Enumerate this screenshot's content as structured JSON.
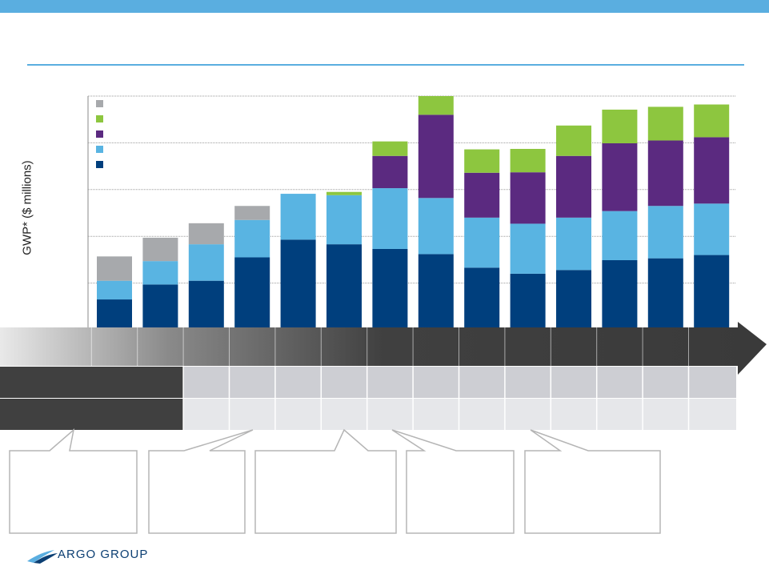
{
  "brand": {
    "logo_text": "ARGO GROUP"
  },
  "colors": {
    "accent": "#5aaee0",
    "navy": "#003f7d",
    "light_blue": "#59b4e2",
    "purple": "#5b2a80",
    "green": "#8dc63f",
    "gray": "#a7a9ac"
  },
  "chart_data": {
    "type": "bar",
    "stacked": true,
    "ylabel": "GWP* ($ millions)",
    "grid": true,
    "legend_position": "top-left",
    "categories": [
      "",
      "",
      "",
      "",
      "",
      "",
      "",
      "",
      "",
      "",
      "",
      "",
      "",
      ""
    ],
    "ylim": [
      0,
      5
    ],
    "series": [
      {
        "color": "#003f7d",
        "values": [
          0.65,
          0.97,
          1.05,
          1.55,
          1.93,
          1.83,
          1.73,
          1.62,
          1.33,
          1.2,
          1.28,
          1.49,
          1.53,
          1.6
        ]
      },
      {
        "color": "#59b4e2",
        "values": [
          0.4,
          0.5,
          0.78,
          0.8,
          0.98,
          1.05,
          1.3,
          1.2,
          1.07,
          1.07,
          1.12,
          1.05,
          1.12,
          1.1
        ]
      },
      {
        "color": "#5b2a80",
        "values": [
          0,
          0,
          0,
          0,
          0,
          0,
          0.69,
          1.78,
          0.96,
          1.1,
          1.32,
          1.45,
          1.4,
          1.42
        ]
      },
      {
        "color": "#8dc63f",
        "values": [
          0,
          0,
          0,
          0,
          0,
          0.07,
          0.31,
          0.4,
          0.5,
          0.5,
          0.65,
          0.72,
          0.72,
          0.7
        ]
      },
      {
        "color": "#a7a9ac",
        "values": [
          0.52,
          0.5,
          0.45,
          0.3,
          0,
          0,
          0,
          0,
          0,
          0,
          0,
          0,
          0,
          0
        ]
      }
    ]
  }
}
